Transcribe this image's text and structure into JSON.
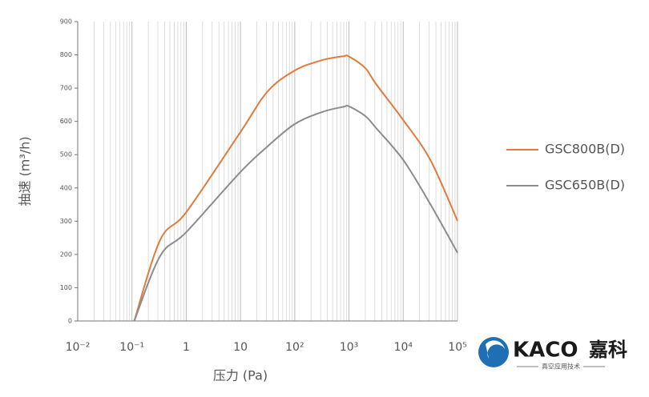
{
  "chart_data": {
    "type": "line",
    "xlabel": "压力 (Pa)",
    "ylabel": "抽速 (m³/h)",
    "log_x": true,
    "grid": true,
    "xlim": [
      0.01,
      100000
    ],
    "xticks": [
      {
        "value": 0.01,
        "label": "10⁻²"
      },
      {
        "value": 0.1,
        "label": "10⁻¹"
      },
      1,
      10,
      {
        "value": 100,
        "label": "10²"
      },
      {
        "value": 1000,
        "label": "10³"
      },
      {
        "value": 10000,
        "label": "10⁴"
      },
      {
        "value": 100000,
        "label": "10⁵"
      }
    ],
    "ylim": [
      0,
      900
    ],
    "yticks": [
      0,
      100,
      200,
      300,
      400,
      500,
      600,
      700,
      800,
      900
    ],
    "x": [
      0.11,
      0.33,
      1,
      10,
      31.6,
      100,
      316,
      794,
      1000,
      2000,
      3160,
      10000,
      31600,
      100000
    ],
    "series": [
      {
        "name": "GSC800B(D)",
        "color": "#e07b3c",
        "values": [
          0,
          243,
          327,
          568,
          690,
          753,
          784,
          796,
          795,
          760,
          712,
          604,
          484,
          301
        ]
      },
      {
        "name": "GSC650B(D)",
        "color": "#8c8c8c",
        "values": [
          0,
          195,
          267,
          448,
          525,
          592,
          628,
          644,
          645,
          616,
          580,
          484,
          351,
          205
        ]
      }
    ]
  },
  "logo": {
    "brand": "KACO",
    "brand_cn": "嘉科",
    "tagline": "真空应用技术"
  }
}
